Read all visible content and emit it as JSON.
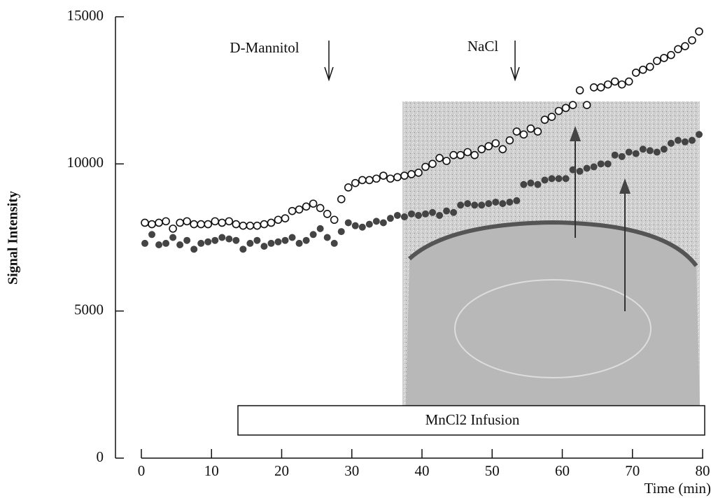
{
  "chart_data": {
    "type": "scatter",
    "xlabel": "Time (min)",
    "ylabel": "Signal Intensity",
    "annotations": [
      "D-Mannitol",
      "NaCl"
    ],
    "bar_label": "MnCl2 Infusion",
    "xlim": [
      0,
      80
    ],
    "ylim": [
      0,
      15000
    ],
    "xticks": [
      0,
      10,
      20,
      30,
      40,
      50,
      60,
      70,
      80
    ],
    "yticks": [
      0,
      5000,
      10000,
      15000
    ],
    "x": [
      0.5,
      1.5,
      2.5,
      3.5,
      4.5,
      5.5,
      6.5,
      7.5,
      8.5,
      9.5,
      10.5,
      11.5,
      12.5,
      13.5,
      14.5,
      15.5,
      16.5,
      17.5,
      18.5,
      19.5,
      20.5,
      21.5,
      22.5,
      23.5,
      24.5,
      25.5,
      26.5,
      27.5,
      28.5,
      29.5,
      30.5,
      31.5,
      32.5,
      33.5,
      34.5,
      35.5,
      36.5,
      37.5,
      38.5,
      39.5,
      40.5,
      41.5,
      42.5,
      43.5,
      44.5,
      45.5,
      46.5,
      47.5,
      48.5,
      49.5,
      50.5,
      51.5,
      52.5,
      53.5,
      54.5,
      55.5,
      56.5,
      57.5,
      58.5,
      59.5,
      60.5,
      61.5,
      62.5,
      63.5,
      64.5,
      65.5,
      66.5,
      67.5,
      68.5,
      69.5,
      70.5,
      71.5,
      72.5,
      73.5,
      74.5,
      75.5,
      76.5,
      77.5,
      78.5,
      79.5
    ],
    "series": [
      {
        "marker": "open",
        "color": "#111111",
        "values": [
          8000,
          7950,
          8000,
          8050,
          7800,
          8000,
          8050,
          7950,
          7950,
          7950,
          8050,
          8000,
          8050,
          7950,
          7900,
          7900,
          7900,
          7950,
          8000,
          8100,
          8150,
          8400,
          8450,
          8550,
          8650,
          8500,
          8300,
          8100,
          8800,
          9200,
          9350,
          9450,
          9450,
          9500,
          9600,
          9500,
          9550,
          9600,
          9650,
          9700,
          9900,
          10000,
          10200,
          10100,
          10300,
          10300,
          10400,
          10300,
          10500,
          10600,
          10700,
          10500,
          10800,
          11100,
          11000,
          11200,
          11100,
          11500,
          11600,
          11800,
          11900,
          12000,
          12500,
          12000,
          12600,
          12600,
          12700,
          12800,
          12700,
          12800,
          13100,
          13200,
          13300,
          13500,
          13600,
          13700,
          13900,
          14000,
          14200,
          14500
        ]
      },
      {
        "marker": "filled",
        "color": "#444444",
        "values": [
          7300,
          7600,
          7250,
          7300,
          7500,
          7250,
          7400,
          7100,
          7300,
          7350,
          7400,
          7500,
          7450,
          7400,
          7100,
          7300,
          7400,
          7200,
          7300,
          7350,
          7400,
          7500,
          7300,
          7400,
          7600,
          7800,
          7500,
          7300,
          7700,
          8000,
          7900,
          7850,
          7950,
          8050,
          8000,
          8150,
          8250,
          8200,
          8300,
          8250,
          8300,
          8350,
          8250,
          8400,
          8350,
          8600,
          8650,
          8600,
          8600,
          8650,
          8700,
          8650,
          8700,
          8750,
          9300,
          9350,
          9300,
          9450,
          9500,
          9500,
          9500,
          9800,
          9750,
          9850,
          9900,
          10000,
          10000,
          10300,
          10250,
          10400,
          10350,
          10500,
          10450,
          10400,
          10500,
          10700,
          10800,
          10750,
          10800,
          11000
        ]
      }
    ]
  }
}
